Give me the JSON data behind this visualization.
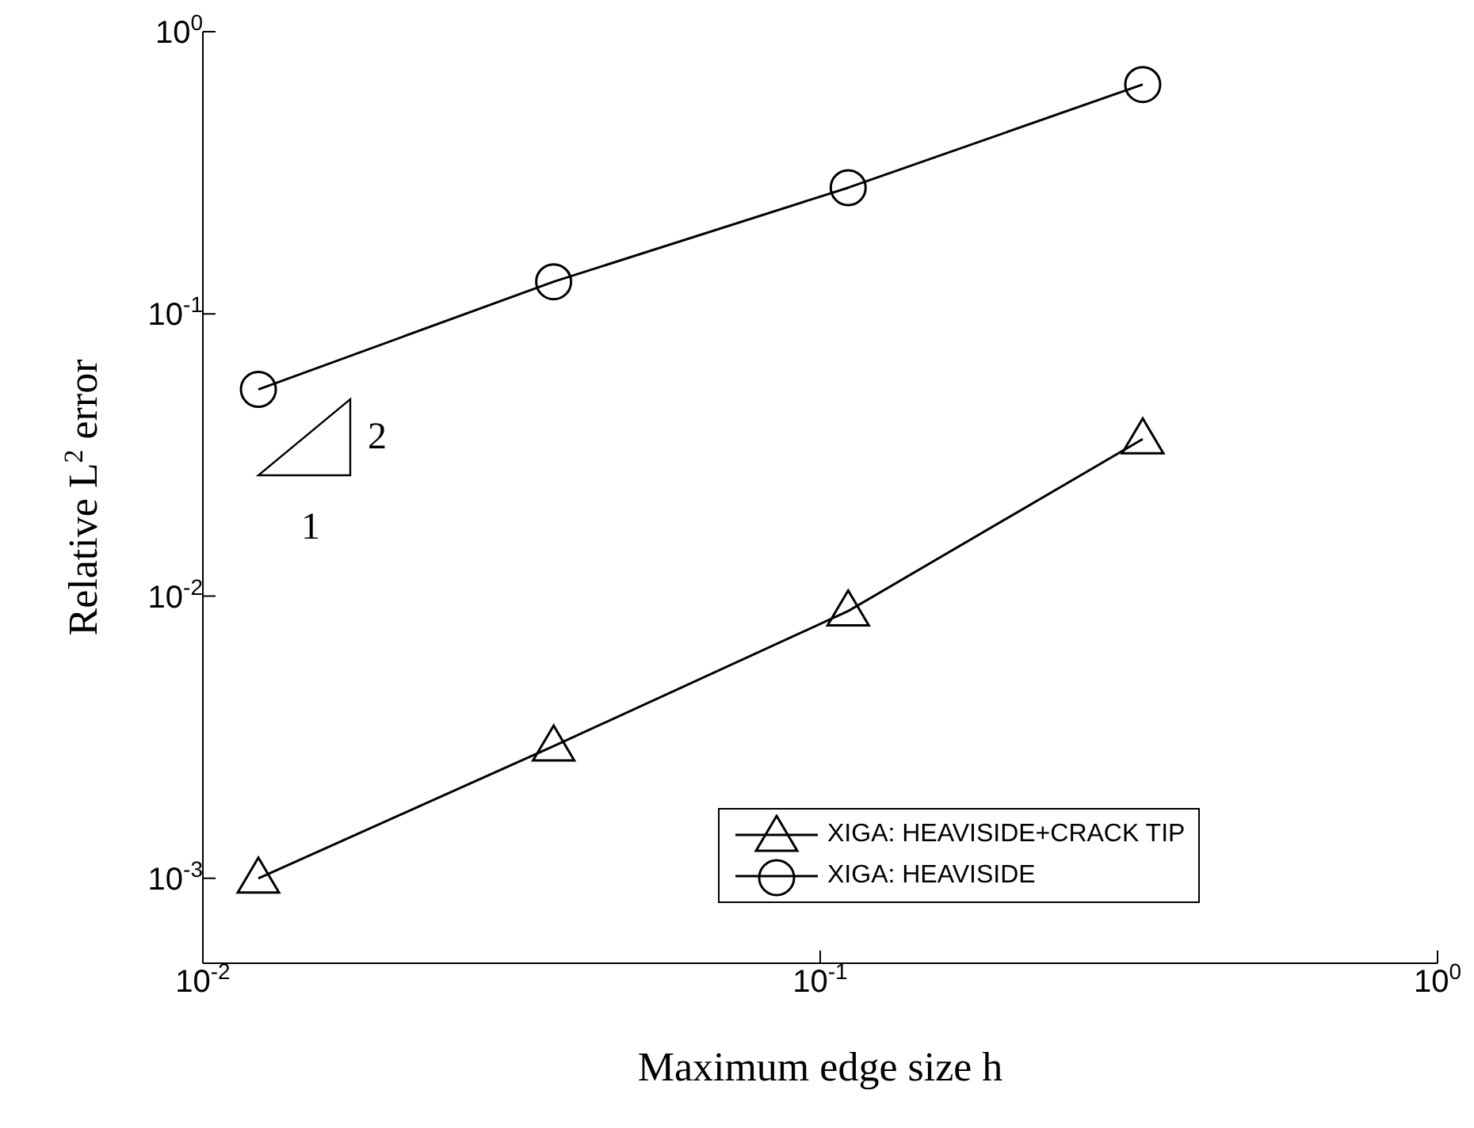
{
  "chart_data": {
    "type": "line",
    "xlabel": "Maximum edge size h",
    "ylabel": "Relative L$^{2}$ error",
    "x": [
      0.0123,
      0.037,
      0.111,
      0.333
    ],
    "series": [
      {
        "name": "XIGA: HEAVISIDE+CRACK TIP",
        "color": "#000000",
        "marker": "triangle",
        "values": [
          0.001,
          0.00294,
          0.00885,
          0.036
        ]
      },
      {
        "name": "XIGA: HEAVISIDE",
        "color": "#000000",
        "marker": "circle",
        "values": [
          0.054,
          0.13,
          0.28,
          0.65
        ]
      }
    ],
    "log": "xy",
    "xlim": [
      0.01,
      1
    ],
    "ylim": [
      0.0005,
      1
    ],
    "xticks": [
      {
        "value": 0.01,
        "label": "10$^{-2}$"
      },
      {
        "value": 0.1,
        "label": "10$^{-1}$"
      },
      {
        "value": 1,
        "label": "10$^{0}$"
      }
    ],
    "yticks": [
      {
        "value": 0.001,
        "label": "10$^{-3}$"
      },
      {
        "value": 0.01,
        "label": "10$^{-2}$"
      },
      {
        "value": 0.1,
        "label": "10$^{-1}$"
      },
      {
        "value": 1,
        "label": "10$^{0}$"
      }
    ],
    "grid": false,
    "legend": "bottom right",
    "line_style": "solid",
    "annotations": [
      "2",
      "1"
    ]
  }
}
